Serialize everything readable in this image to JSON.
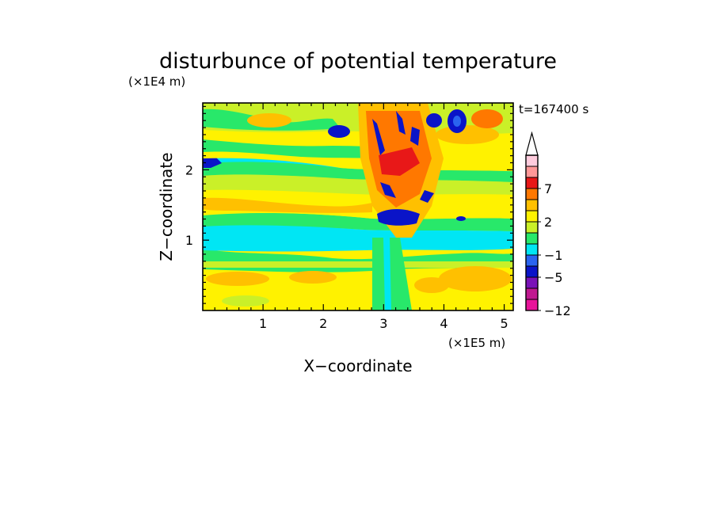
{
  "chart_data": {
    "type": "heatmap",
    "title": "disturbunce of potential temperature",
    "time_label": "t=167400 s",
    "xlabel": "X−coordinate",
    "ylabel": "Z−coordinate",
    "x_scale_label": "(×1E5 m)",
    "y_scale_label": "(×1E4 m)",
    "xlim": [
      0,
      5.15
    ],
    "ylim": [
      0,
      2.95
    ],
    "x_ticks": [
      "1",
      "2",
      "3",
      "4",
      "5"
    ],
    "x_tick_values": [
      1,
      2,
      3,
      4,
      5
    ],
    "y_ticks": [
      "1",
      "2"
    ],
    "y_tick_values": [
      1,
      2
    ],
    "colorbar": {
      "levels": [
        -12,
        -9,
        -7,
        -5,
        -3,
        -1,
        0,
        1,
        2,
        3,
        5,
        7,
        9,
        12
      ],
      "labels": [
        "−12",
        "−5",
        "−1",
        "2",
        "7"
      ],
      "label_values": [
        -12,
        -5,
        -1,
        2,
        7
      ],
      "colors": [
        "#e8149a",
        "#c01890",
        "#7a12b8",
        "#0a14c8",
        "#2a64f0",
        "#00e6f4",
        "#28e86a",
        "#caf028",
        "#fff200",
        "#ffc000",
        "#ff7800",
        "#e81818",
        "#ff9898",
        "#ffccdd"
      ],
      "extend_top": true
    }
  }
}
